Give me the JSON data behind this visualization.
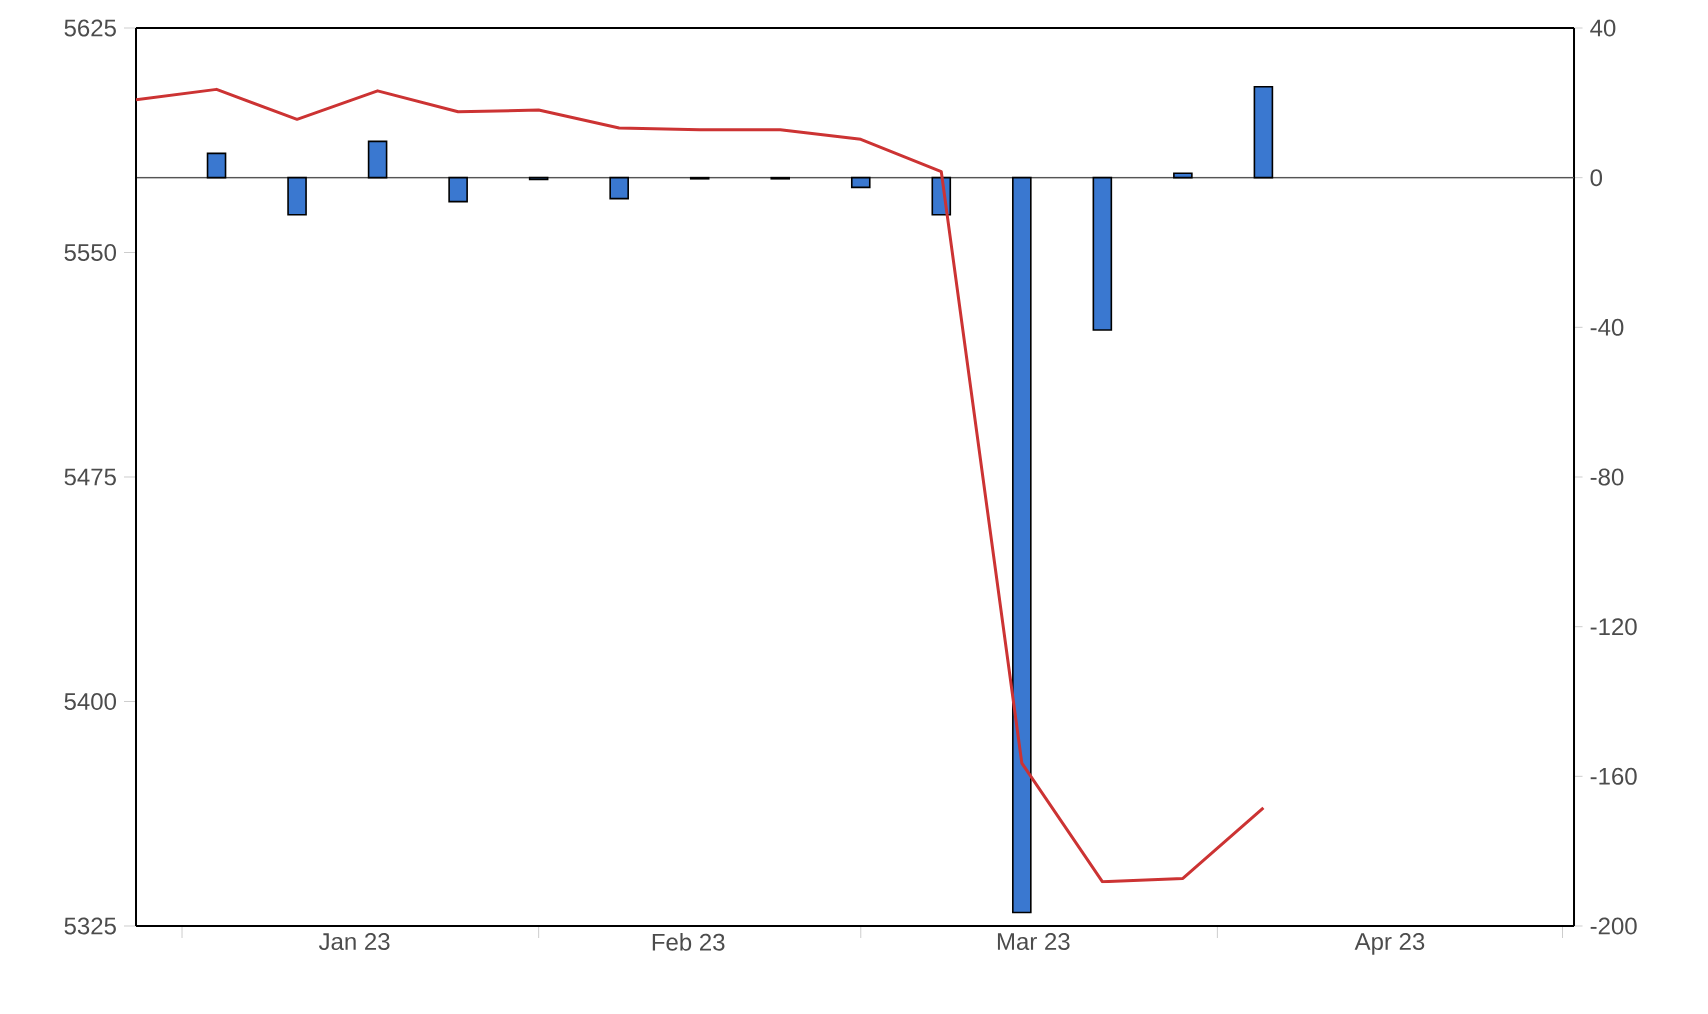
{
  "chart_data": {
    "type": "bar",
    "xlim": [
      "2022-12-28",
      "2023-05-02"
    ],
    "xticks": [
      {
        "value": "2023-01-01",
        "label": null
      },
      {
        "value": "2023-02-01",
        "label": null
      },
      {
        "value": "2023-03-01",
        "label": null
      },
      {
        "value": "2023-04-01",
        "label": null
      },
      {
        "value": "2023-05-01",
        "label": null
      },
      {
        "value": "2023-01-16",
        "label": "Jan 23"
      },
      {
        "value": "2023-02-14",
        "label": "Feb 23"
      },
      {
        "value": "2023-03-16",
        "label": "Mar 23"
      },
      {
        "value": "2023-04-16",
        "label": "Apr 23"
      }
    ],
    "ylim": [
      5325,
      5625
    ],
    "yticks": [
      5325,
      5400,
      5475,
      5550,
      5625
    ],
    "y2lim": [
      -200,
      40
    ],
    "y2ticks": [
      -200,
      -160,
      -120,
      -80,
      -40,
      0,
      40
    ],
    "series": [
      {
        "type": "line",
        "color": "#cc3333",
        "line_style": "solid",
        "x": [
          "2022-12-28",
          "2023-01-04",
          "2023-01-11",
          "2023-01-18",
          "2023-01-25",
          "2023-02-01",
          "2023-02-08",
          "2023-02-15",
          "2023-02-22",
          "2023-03-01",
          "2023-03-08",
          "2023-03-15",
          "2023-03-22",
          "2023-03-29",
          "2023-04-05"
        ],
        "values": [
          5601,
          5604.5,
          5594.5,
          5604,
          5597,
          5597.6,
          5591.6,
          5591,
          5591,
          5587.8,
          5577,
          5379.4,
          5339.8,
          5340.9,
          5364.5
        ]
      },
      {
        "axis": "y2",
        "color": "#3a78d0",
        "x": [
          "2023-01-04",
          "2023-01-11",
          "2023-01-18",
          "2023-01-25",
          "2023-02-01",
          "2023-02-08",
          "2023-02-15",
          "2023-02-22",
          "2023-03-01",
          "2023-03-08",
          "2023-03-15",
          "2023-03-22",
          "2023-03-29",
          "2023-04-05"
        ],
        "values": [
          6.5,
          -9.9,
          9.7,
          -6.4,
          -0.5,
          -5.6,
          -0.3,
          -0.3,
          -2.6,
          -9.9,
          -196.4,
          -40.7,
          1.2,
          24.3
        ]
      }
    ],
    "ref_lines": [
      {
        "axis": "y2",
        "value": 0,
        "color": "#555555"
      }
    ]
  }
}
